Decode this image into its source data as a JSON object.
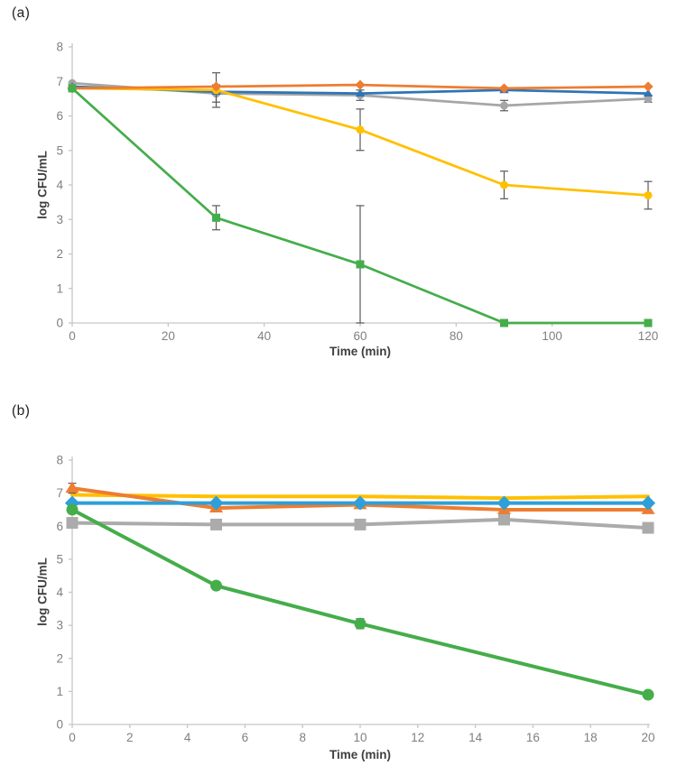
{
  "figure": {
    "background": "#ffffff",
    "axis_line_color": "#c6c6c6",
    "tick_label_color": "#808080",
    "axis_title_color": "#3f3f3f",
    "error_bar_color": "#595959",
    "panel_text_color": "#1f1f1f"
  },
  "chart_data": [
    {
      "type": "line",
      "panel_label": "(a)",
      "xlabel": "Time (min)",
      "ylabel": "log CFU/mL",
      "xlim": [
        0,
        120
      ],
      "ylim": [
        0,
        8
      ],
      "xticks": [
        0,
        20,
        40,
        60,
        80,
        100,
        120
      ],
      "yticks": [
        0,
        1,
        2,
        3,
        4,
        5,
        6,
        7,
        8
      ],
      "grid": false,
      "legend": "none",
      "x": [
        0,
        30,
        60,
        90,
        120
      ],
      "series": [
        {
          "name": "gray-circles",
          "color": "#A6A6A6",
          "marker": "circle",
          "values": [
            6.95,
            6.65,
            6.6,
            6.3,
            6.5
          ],
          "errors": [
            0,
            0.25,
            0.15,
            0.15,
            0.1
          ]
        },
        {
          "name": "blue-triangles",
          "color": "#2E75B6",
          "marker": "triangle",
          "values": [
            6.85,
            6.7,
            6.65,
            6.75,
            6.65
          ],
          "errors": [
            0,
            0,
            0,
            0,
            0
          ]
        },
        {
          "name": "yellow-circles",
          "color": "#FFC000",
          "marker": "circle",
          "values": [
            6.8,
            6.75,
            5.6,
            4.0,
            3.7
          ],
          "errors": [
            0,
            0.5,
            0.6,
            0.4,
            0.4
          ]
        },
        {
          "name": "orange-diamonds",
          "color": "#ED7D31",
          "marker": "diamond",
          "values": [
            6.8,
            6.85,
            6.9,
            6.8,
            6.85
          ],
          "errors": [
            0,
            0,
            0,
            0,
            0
          ]
        },
        {
          "name": "green-squares",
          "color": "#45AD4A",
          "marker": "square",
          "values": [
            6.8,
            3.05,
            1.7,
            0,
            0
          ],
          "errors": [
            0,
            0.35,
            1.7,
            0,
            0
          ]
        }
      ]
    },
    {
      "type": "line",
      "panel_label": "(b)",
      "xlabel": "Time (min)",
      "ylabel": "log CFU/mL",
      "xlim": [
        0,
        20
      ],
      "ylim": [
        0,
        8
      ],
      "xticks": [
        0,
        2,
        4,
        6,
        8,
        10,
        12,
        14,
        16,
        18,
        20
      ],
      "yticks": [
        0,
        1,
        2,
        3,
        4,
        5,
        6,
        7,
        8
      ],
      "grid": false,
      "legend": "none",
      "x": [
        0,
        5,
        10,
        15,
        20
      ],
      "series": [
        {
          "name": "gray-squares",
          "color": "#ABABAB",
          "marker": "square",
          "values": [
            6.1,
            6.05,
            6.05,
            6.2,
            5.95
          ],
          "errors": [
            0,
            0,
            0,
            0,
            0
          ]
        },
        {
          "name": "yellow-line",
          "color": "#FFC000",
          "marker": "none",
          "values": [
            6.95,
            6.9,
            6.9,
            6.85,
            6.9
          ],
          "errors": [
            0,
            0,
            0,
            0,
            0
          ]
        },
        {
          "name": "orange-triangles",
          "color": "#ED7D31",
          "marker": "triangle",
          "values": [
            7.15,
            6.55,
            6.65,
            6.5,
            6.5
          ],
          "errors": [
            0.15,
            0,
            0,
            0,
            0
          ]
        },
        {
          "name": "blue-diamonds",
          "color": "#2E9FD9",
          "marker": "diamond",
          "values": [
            6.7,
            6.7,
            6.7,
            6.7,
            6.7
          ],
          "errors": [
            0,
            0,
            0,
            0,
            0
          ]
        },
        {
          "name": "green-circles",
          "color": "#45AD4A",
          "marker": "circle",
          "values": [
            6.5,
            4.2,
            3.05,
            null,
            0.9
          ],
          "errors": [
            0,
            0,
            0.15,
            null,
            0
          ]
        }
      ]
    }
  ]
}
